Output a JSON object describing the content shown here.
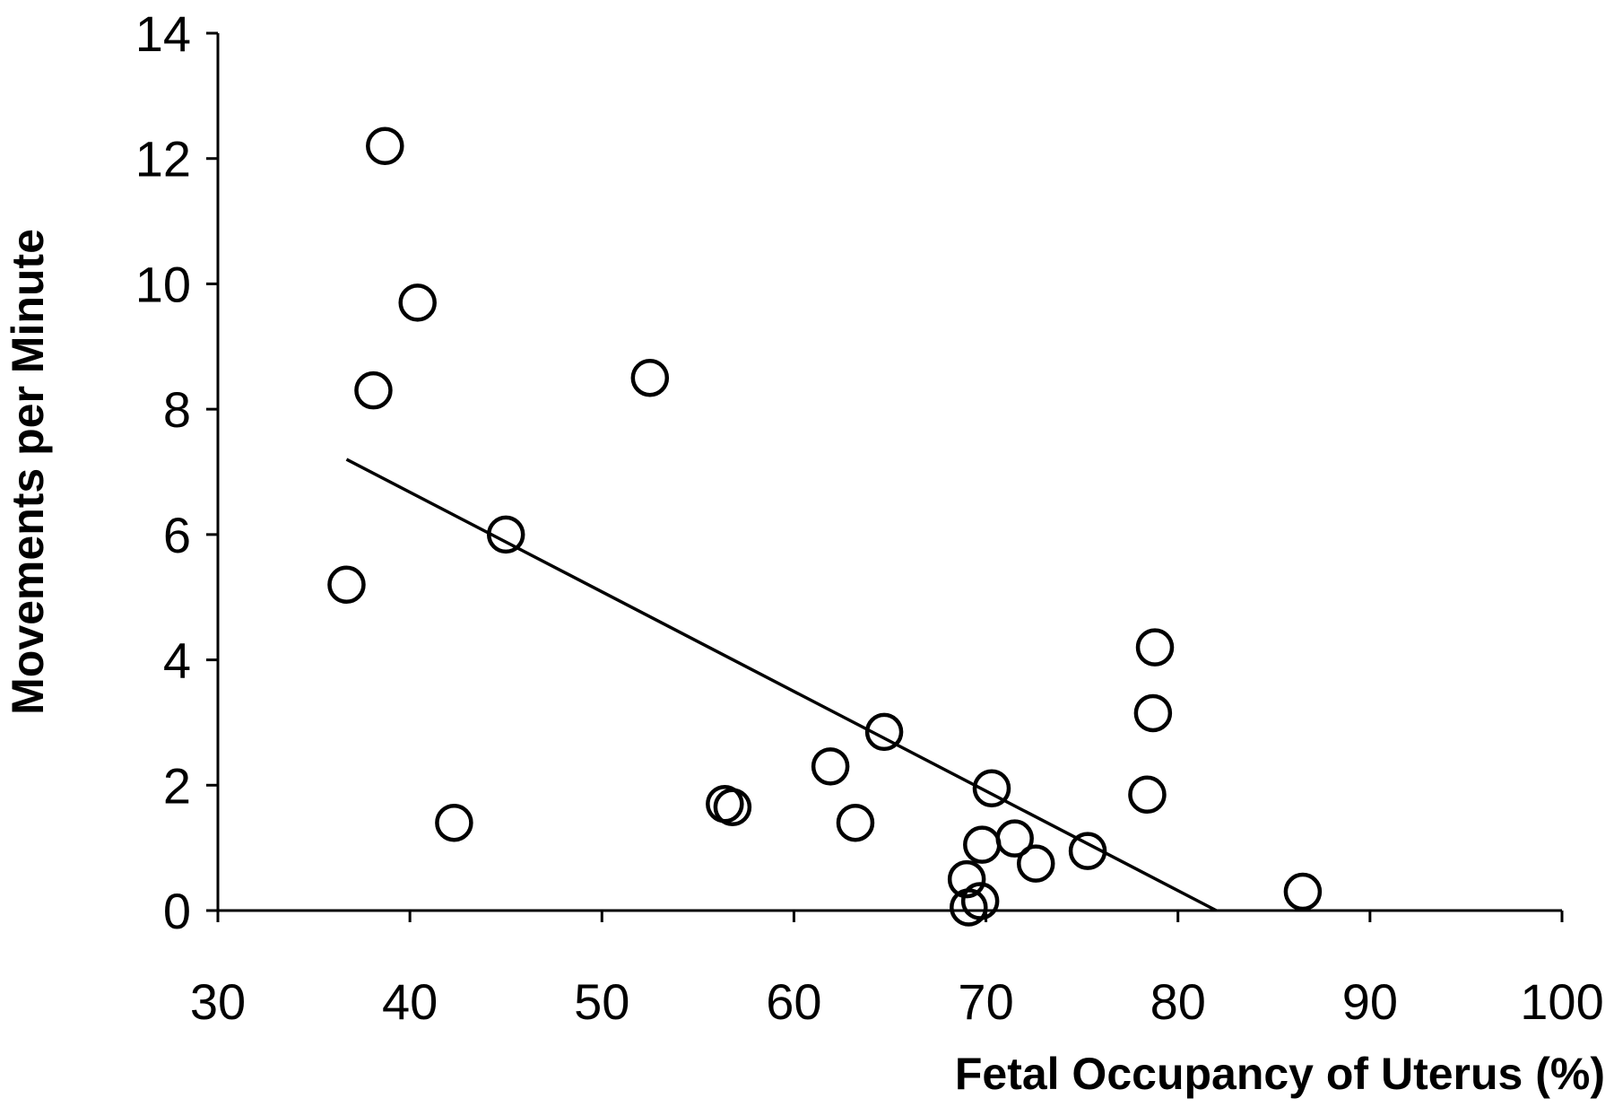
{
  "chart_data": {
    "type": "scatter",
    "title": "",
    "xlabel": "Fetal Occupancy of Uterus (%)",
    "ylabel": "Movements per Minute",
    "xlim": [
      30,
      100
    ],
    "ylim": [
      0,
      14
    ],
    "x_ticks": [
      30,
      40,
      50,
      60,
      70,
      80,
      90,
      100
    ],
    "y_ticks": [
      0,
      2,
      4,
      6,
      8,
      10,
      12,
      14
    ],
    "grid": false,
    "legend": "none",
    "marker": "open-circle",
    "colors": {
      "stroke": "#000000",
      "background": "#ffffff"
    },
    "points": [
      {
        "x": 38.7,
        "y": 12.2
      },
      {
        "x": 40.4,
        "y": 9.7
      },
      {
        "x": 38.1,
        "y": 8.3
      },
      {
        "x": 52.5,
        "y": 8.5
      },
      {
        "x": 36.7,
        "y": 5.2
      },
      {
        "x": 45.0,
        "y": 6.0
      },
      {
        "x": 42.3,
        "y": 1.4
      },
      {
        "x": 56.4,
        "y": 1.7
      },
      {
        "x": 56.8,
        "y": 1.65
      },
      {
        "x": 61.9,
        "y": 2.3
      },
      {
        "x": 63.2,
        "y": 1.4
      },
      {
        "x": 64.7,
        "y": 2.85
      },
      {
        "x": 69.0,
        "y": 0.5
      },
      {
        "x": 69.1,
        "y": 0.05
      },
      {
        "x": 69.7,
        "y": 0.15
      },
      {
        "x": 69.8,
        "y": 1.05
      },
      {
        "x": 70.3,
        "y": 1.95
      },
      {
        "x": 71.5,
        "y": 1.15
      },
      {
        "x": 72.6,
        "y": 0.75
      },
      {
        "x": 75.3,
        "y": 0.95
      },
      {
        "x": 78.4,
        "y": 1.85
      },
      {
        "x": 78.7,
        "y": 3.15
      },
      {
        "x": 78.8,
        "y": 4.2
      },
      {
        "x": 86.5,
        "y": 0.3
      }
    ],
    "trendline": {
      "x": [
        36.7,
        82.0
      ],
      "y": [
        7.2,
        0.0
      ]
    }
  }
}
